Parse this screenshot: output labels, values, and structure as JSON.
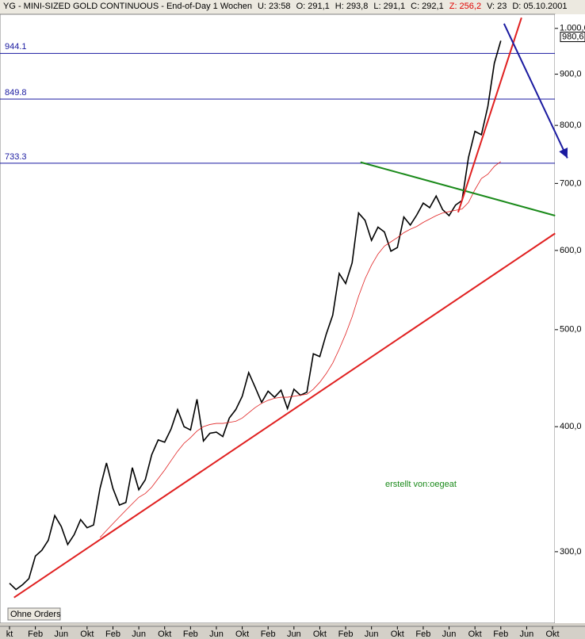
{
  "chart_data": {
    "type": "line",
    "header_items": [
      {
        "text": "YG - MINI-SIZED GOLD CONTINUOUS - End-of-Day 1 Wochen",
        "color": "#000000"
      },
      {
        "text": "U: 23:58",
        "color": "#000000"
      },
      {
        "text": "O: 291,1",
        "color": "#000000"
      },
      {
        "text": "H: 293,8",
        "color": "#000000"
      },
      {
        "text": "L: 291,1",
        "color": "#000000"
      },
      {
        "text": "C: 292,1",
        "color": "#000000"
      },
      {
        "text": "Z: 256,2",
        "color": "#e00000"
      },
      {
        "text": "V: 23",
        "color": "#000000"
      },
      {
        "text": "D: 05.10.2001",
        "color": "#000000"
      }
    ],
    "categories": [
      "kt",
      null,
      null,
      null,
      "Feb",
      null,
      null,
      null,
      "Jun",
      null,
      null,
      null,
      "Okt",
      null,
      null,
      null,
      "Feb",
      null,
      null,
      null,
      "Jun",
      null,
      null,
      null,
      "Okt",
      null,
      null,
      null,
      "Feb",
      null,
      null,
      null,
      "Jun",
      null,
      null,
      null,
      "Okt",
      null,
      null,
      null,
      "Feb",
      null,
      null,
      null,
      "Jun",
      null,
      null,
      null,
      "Okt",
      null,
      null,
      null,
      "Feb",
      null,
      null,
      null,
      "Jun",
      null,
      null,
      null,
      "Okt",
      null,
      null,
      null,
      "Feb",
      null,
      null,
      null,
      "Jun",
      null,
      null,
      null,
      "Okt",
      null,
      null,
      null,
      "Feb",
      null,
      null,
      null,
      "Jun",
      null,
      null,
      null,
      "Okt"
    ],
    "series": [
      {
        "name": "YG",
        "color": "#000000",
        "width": 1.6,
        "values": [
          279,
          275,
          278,
          282,
          297,
          301,
          308,
          326,
          318,
          305,
          312,
          323,
          317,
          319,
          347,
          368,
          347,
          334,
          336,
          364,
          346,
          354,
          375,
          388,
          386,
          398,
          416,
          400,
          397,
          426,
          387,
          394,
          395,
          391,
          408,
          416,
          429,
          453,
          438,
          423,
          434,
          428,
          435,
          417,
          436,
          430,
          433,
          473,
          470,
          495,
          517,
          569,
          556,
          583,
          654,
          643,
          614,
          633,
          626,
          599,
          604,
          648,
          636,
          651,
          669,
          662,
          680,
          659,
          650,
          666,
          673,
          743,
          789,
          783,
          836,
          923,
          972,
          null,
          null,
          null,
          null,
          null,
          null,
          null,
          null
        ]
      },
      {
        "name": "MA",
        "color": "#e02020",
        "width": 0.8,
        "values": [
          null,
          null,
          null,
          null,
          null,
          null,
          null,
          null,
          null,
          null,
          null,
          null,
          null,
          null,
          310,
          315,
          320,
          325,
          330,
          335,
          340,
          343,
          348,
          355,
          362,
          370,
          378,
          385,
          390,
          396,
          400,
          402,
          403,
          403,
          404,
          405,
          408,
          413,
          418,
          422,
          425,
          427,
          428,
          428,
          429,
          430,
          431,
          436,
          443,
          452,
          463,
          478,
          495,
          515,
          540,
          562,
          580,
          595,
          606,
          612,
          618,
          625,
          630,
          634,
          640,
          645,
          650,
          654,
          656,
          658,
          660,
          670,
          690,
          708,
          715,
          728,
          736,
          null,
          null,
          null,
          null,
          null,
          null,
          null,
          null
        ]
      }
    ],
    "log_y": true,
    "ylim": [
      255,
      1033
    ],
    "yticks": [
      {
        "value": 300,
        "label": "300,0"
      },
      {
        "value": 400,
        "label": "400,0"
      },
      {
        "value": 500,
        "label": "500,0"
      },
      {
        "value": 600,
        "label": "600,0"
      },
      {
        "value": 700,
        "label": "700,0"
      },
      {
        "value": 800,
        "label": "800,0"
      },
      {
        "value": 900,
        "label": "900,0"
      },
      {
        "value": 1000,
        "label": "1.000,0"
      }
    ],
    "levels": [
      944.1,
      849.8,
      733.3
    ],
    "level_color": "#1a1aa0",
    "last_price": {
      "value": 980.6,
      "label": "980,6"
    },
    "trendlines": [
      {
        "color": "#e02020",
        "arrow": false,
        "points": [
          [
            0.7,
            270
          ],
          [
            84.4,
            624
          ]
        ]
      },
      {
        "color": "#1a8a1a",
        "arrow": false,
        "points": [
          [
            54.3,
            735
          ],
          [
            84.4,
            650
          ]
        ]
      },
      {
        "color": "#e02020",
        "arrow": false,
        "points": [
          [
            69.4,
            655
          ],
          [
            79.2,
            1025
          ]
        ]
      },
      {
        "color": "#1a1aa0",
        "arrow": true,
        "points": [
          [
            76.5,
            1011
          ],
          [
            86.3,
            742
          ]
        ]
      }
    ],
    "annotation": "erstellt von:oegeat",
    "annotation_color": "#1a8a1a",
    "button": "Ohne Orders"
  }
}
